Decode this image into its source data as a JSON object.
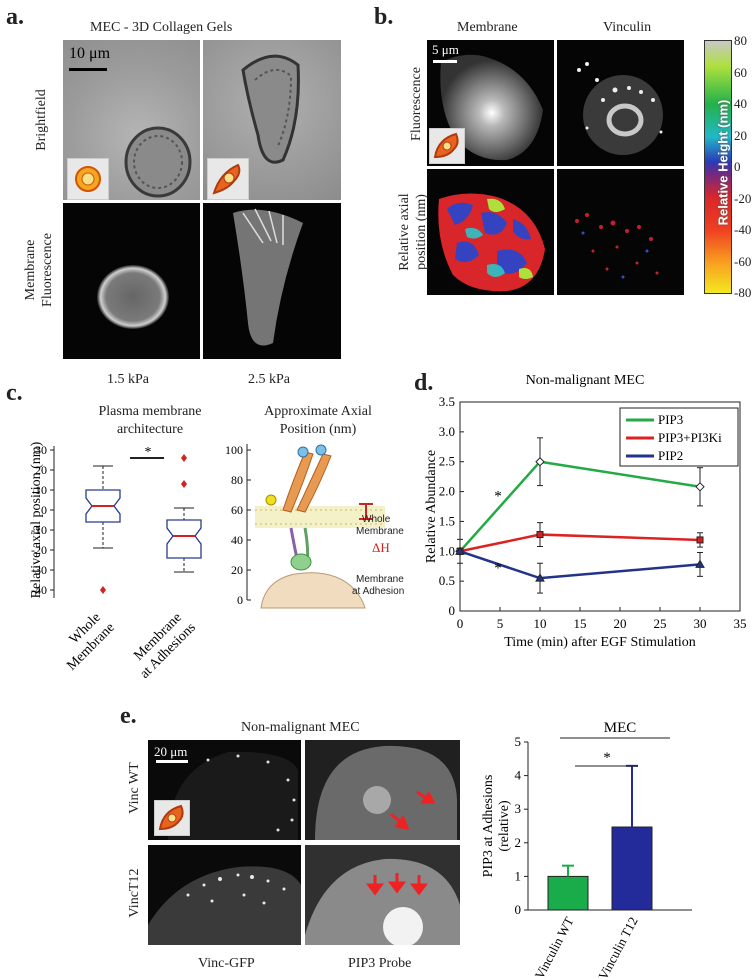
{
  "panel_a": {
    "letter": "a.",
    "title": "MEC - 3D Collagen Gels",
    "scalebar": "10 μm",
    "row1_label": "Brightfield",
    "row2_label_line1": "Membrane",
    "row2_label_line2": "Fluorescence",
    "col1_label": "1.5 kPa",
    "col2_label": "2.5 kPa"
  },
  "panel_b": {
    "letter": "b.",
    "col1_title": "Membrane",
    "col2_title": "Vinculin",
    "scalebar": "5 μm",
    "row1_label": "Fluorescence",
    "row2_label_line1": "Relative axial",
    "row2_label_line2": "position (nm)",
    "colorbar_label": "Relative Height (nm)",
    "colorbar_ticks": [
      "80",
      "60",
      "40",
      "20",
      "0",
      "-20",
      "-40",
      "-60",
      "-80"
    ]
  },
  "panel_c": {
    "letter": "c.",
    "boxplot_title_line1": "Plasma membrane",
    "boxplot_title_line2": "architecture",
    "diagram_title_line1": "Approximate Axial",
    "diagram_title_line2": "Position (nm)",
    "whole_membrane_label": [
      "Whole",
      "Membrane"
    ],
    "adhesion_label": [
      "Membrane",
      "at Adhesion"
    ],
    "delta_label": "ΔH",
    "significance": "*"
  },
  "panel_d": {
    "letter": "d.",
    "significance": "*"
  },
  "panel_e": {
    "letter": "e.",
    "title": "Non-malignant MEC",
    "scalebar": "20 μm",
    "row1_label": "Vinc WT",
    "row2_label": "VincT12",
    "col1_label": "Vinc-GFP",
    "col2_label": "PIP3 Probe"
  },
  "chart_data": [
    {
      "type": "box",
      "title": "",
      "ylabel": "Relative axial position (nm)",
      "ylim": [
        -45,
        32
      ],
      "yticks": [
        30,
        20,
        10,
        0,
        -10,
        -20,
        -30,
        -40
      ],
      "categories": [
        "Whole Membrane",
        "Membrane at Adhesions"
      ],
      "boxes": [
        {
          "name": "Whole Membrane",
          "whisker_low": -19,
          "q1": -6,
          "median": 2,
          "q3": 10,
          "whisker_high": 22,
          "outliers": [
            -40
          ]
        },
        {
          "name": "Membrane at Adhesions",
          "whisker_low": -31,
          "q1": -24,
          "median": -13,
          "q3": -5,
          "whisker_high": 1,
          "outliers": [
            13,
            26
          ]
        }
      ],
      "significance": "*"
    },
    {
      "type": "bar",
      "title": "",
      "ylabel": "Approximate Axial Position (nm)",
      "ylim": [
        0,
        100
      ],
      "yticks": [
        0,
        20,
        40,
        60,
        80,
        100
      ]
    },
    {
      "type": "line",
      "title": "Non-malignant MEC",
      "xlabel": "Time (min) after EGF Stimulation",
      "ylabel": "Relative Abundance",
      "xlim": [
        0,
        35
      ],
      "ylim": [
        0,
        3.5
      ],
      "xticks": [
        0,
        5,
        10,
        15,
        20,
        25,
        30,
        35
      ],
      "yticks": [
        0,
        0.5,
        1.0,
        1.5,
        2.0,
        2.5,
        3.0,
        3.5
      ],
      "x": [
        0,
        10,
        30
      ],
      "series": [
        {
          "name": "PIP3",
          "color": "#22aa44",
          "marker": "diamond",
          "values": [
            1.0,
            2.5,
            2.08
          ],
          "errors": [
            0.05,
            0.4,
            0.32
          ]
        },
        {
          "name": "PIP3+PI3Ki",
          "color": "#dd2222",
          "marker": "square",
          "values": [
            1.0,
            1.28,
            1.19
          ],
          "errors": [
            0.05,
            0.2,
            0.12
          ]
        },
        {
          "name": "PIP2",
          "color": "#223388",
          "marker": "triangle",
          "values": [
            1.0,
            0.55,
            0.78
          ],
          "errors": [
            0.2,
            0.25,
            0.2
          ]
        }
      ]
    },
    {
      "type": "bar",
      "title": "MEC",
      "ylabel": "PIP3 at Adhesions (relative)",
      "ylim": [
        0,
        5
      ],
      "yticks": [
        0,
        1,
        2,
        3,
        4,
        5
      ],
      "categories": [
        "Vinculin WT",
        "Vinculin T12"
      ],
      "values": [
        1.0,
        2.47
      ],
      "errors": [
        0.32,
        1.82
      ],
      "colors": [
        "#1aab4a",
        "#232b9a"
      ],
      "significance": "*"
    }
  ]
}
